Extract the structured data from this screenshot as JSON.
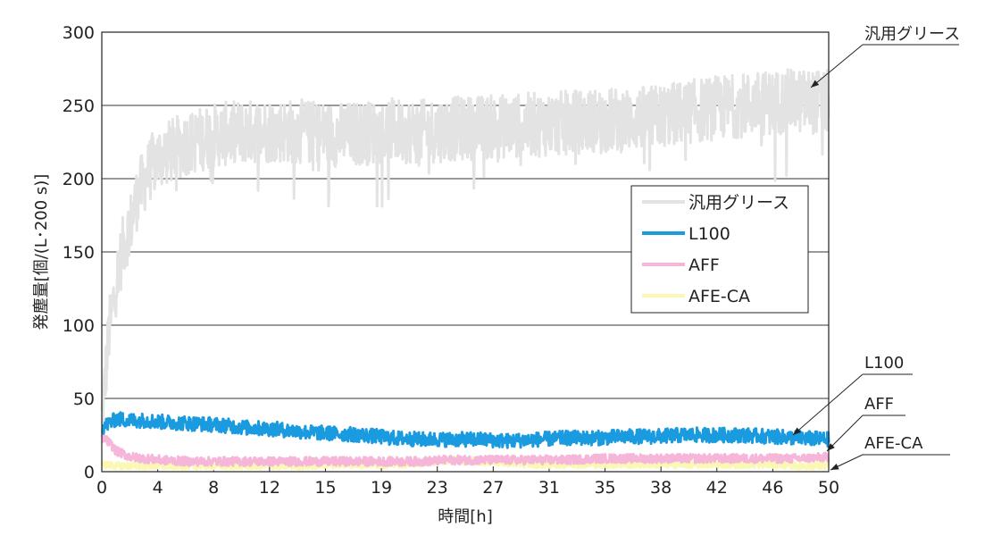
{
  "chart_data": {
    "type": "line",
    "xlabel": "時間[h]",
    "ylabel": "発塵量[個/(L･200 s)]",
    "x_tick_labels": [
      "0",
      "4",
      "8",
      "12",
      "15",
      "19",
      "23",
      "27",
      "31",
      "35",
      "38",
      "42",
      "46",
      "50"
    ],
    "y_tick_labels": [
      "0",
      "50",
      "100",
      "150",
      "200",
      "250",
      "300"
    ],
    "xlim": [
      0,
      50
    ],
    "ylim": [
      0,
      300
    ],
    "grid": "horizontal",
    "legend_position": "right-center",
    "series": [
      {
        "name": "汎用グリース",
        "color": "#e3e3e3",
        "x": [
          0,
          0.5,
          1,
          1.5,
          2,
          2.5,
          3,
          3.5,
          4,
          5,
          6,
          8,
          10,
          12,
          14,
          16,
          18,
          20,
          22,
          24,
          26,
          28,
          30,
          32,
          34,
          36,
          38,
          40,
          42,
          44,
          46,
          48,
          50
        ],
        "values": [
          35,
          95,
          130,
          155,
          170,
          190,
          200,
          210,
          215,
          220,
          225,
          230,
          232,
          233,
          232,
          230,
          231,
          233,
          232,
          234,
          235,
          236,
          237,
          238,
          240,
          240,
          242,
          245,
          248,
          250,
          252,
          253,
          252
        ]
      },
      {
        "name": "L100",
        "color": "#1a9be0",
        "x": [
          0,
          1,
          2,
          3,
          4,
          6,
          8,
          10,
          12,
          14,
          16,
          18,
          20,
          22,
          24,
          26,
          28,
          30,
          32,
          34,
          36,
          38,
          40,
          42,
          44,
          46,
          48,
          50
        ],
        "values": [
          30,
          36,
          35,
          35,
          34,
          33,
          32,
          30,
          29,
          27,
          26,
          25,
          23,
          22,
          22,
          22,
          21,
          22,
          23,
          23,
          24,
          24,
          25,
          25,
          25,
          24,
          23,
          22
        ]
      },
      {
        "name": "AFF",
        "color": "#f5b6d9",
        "x": [
          0,
          0.5,
          1,
          2,
          4,
          6,
          8,
          10,
          12,
          14,
          16,
          18,
          20,
          22,
          24,
          26,
          28,
          30,
          32,
          34,
          36,
          38,
          40,
          42,
          44,
          46,
          48,
          50
        ],
        "values": [
          24,
          20,
          14,
          10,
          8,
          7,
          7,
          7,
          7,
          7,
          7,
          7,
          7,
          7,
          8,
          8,
          8,
          8,
          8,
          9,
          9,
          9,
          9,
          9,
          9,
          9,
          9,
          10
        ]
      },
      {
        "name": "AFE-CA",
        "color": "#fbf7b4",
        "x": [
          0,
          1,
          2,
          4,
          6,
          8,
          10,
          12,
          14,
          16,
          18,
          20,
          22,
          24,
          26,
          28,
          30,
          32,
          34,
          36,
          38,
          40,
          42,
          44,
          46,
          48,
          50
        ],
        "values": [
          5,
          4,
          4,
          4,
          4,
          4,
          4,
          4,
          4,
          5,
          5,
          5,
          6,
          8,
          7,
          6,
          5,
          5,
          5,
          5,
          5,
          5,
          5,
          5,
          5,
          4,
          4
        ]
      }
    ],
    "annotations": [
      "汎用グリース",
      "L100",
      "AFF",
      "AFE-CA"
    ]
  }
}
